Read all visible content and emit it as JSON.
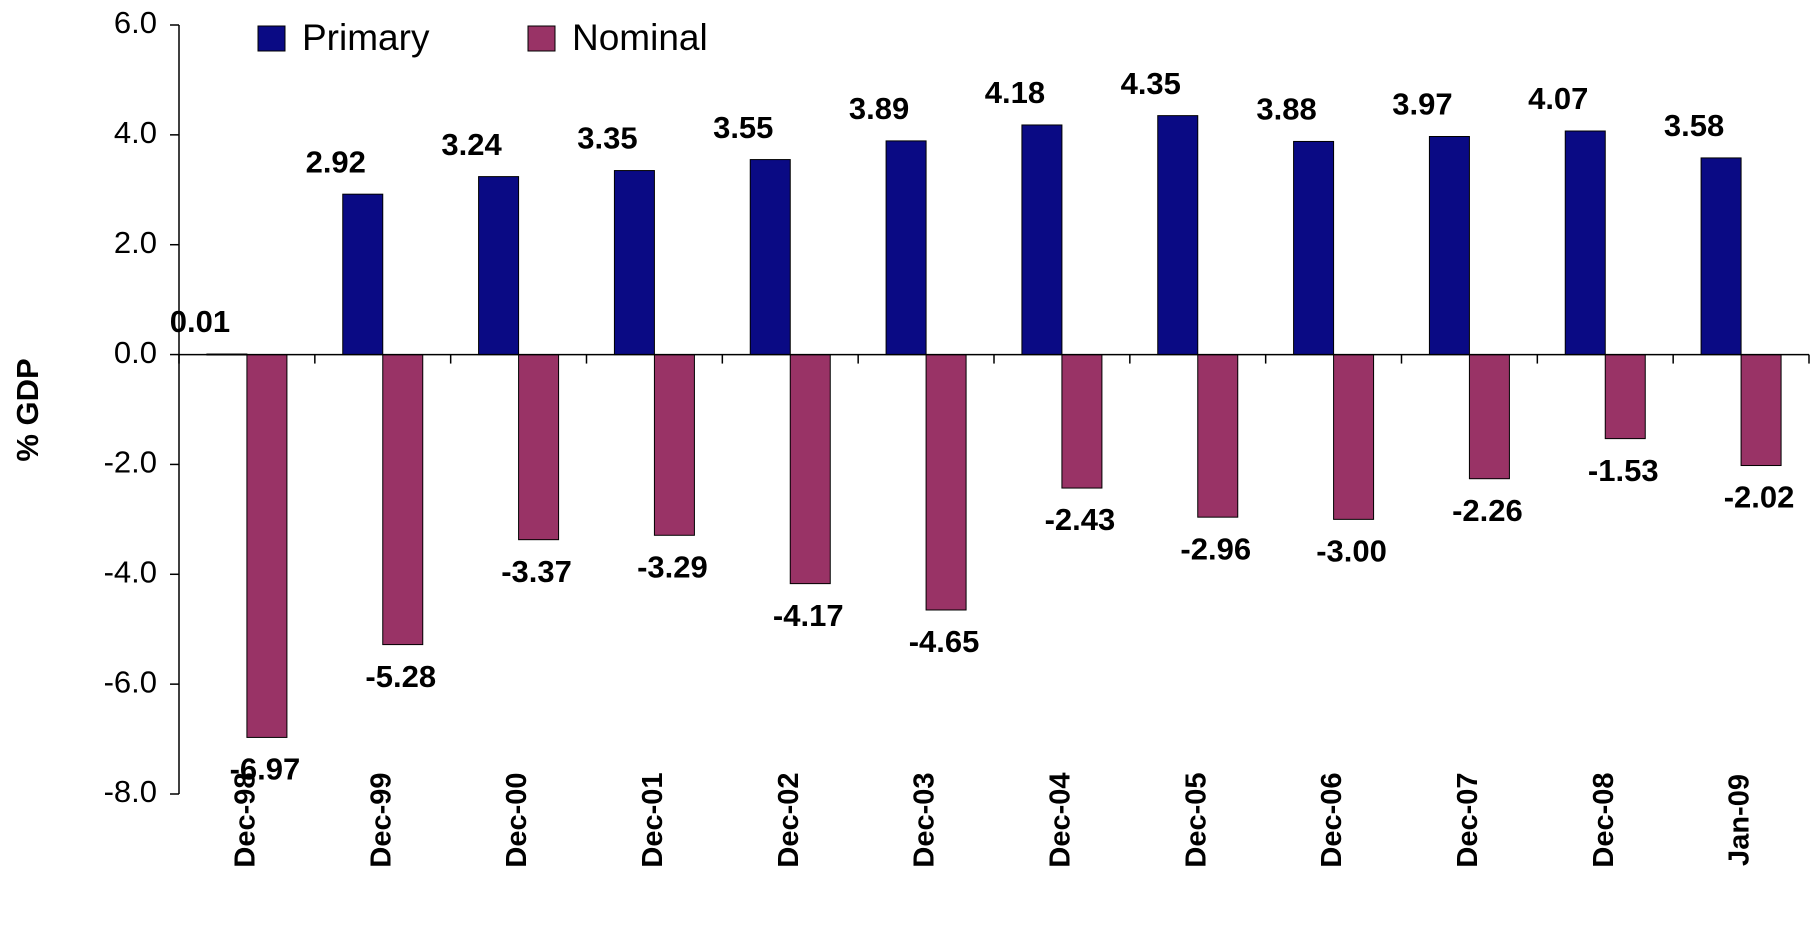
{
  "chart_data": {
    "type": "bar",
    "y_label": "% GDP",
    "categories": [
      "Dec-98",
      "Dec-99",
      "Dec-00",
      "Dec-01",
      "Dec-02",
      "Dec-03",
      "Dec-04",
      "Dec-05",
      "Dec-06",
      "Dec-07",
      "Dec-08",
      "Jan-09"
    ],
    "series": [
      {
        "name": "Primary",
        "color": "#0a0a84",
        "values": [
          0.01,
          2.92,
          3.24,
          3.35,
          3.55,
          3.89,
          4.18,
          4.35,
          3.88,
          3.97,
          4.07,
          3.58
        ],
        "value_labels": [
          "0.01",
          "2.92",
          "3.24",
          "3.35",
          "3.55",
          "3.89",
          "4.18",
          "4.35",
          "3.88",
          "3.97",
          "4.07",
          "3.58"
        ]
      },
      {
        "name": "Nominal",
        "color": "#993366",
        "values": [
          -6.97,
          -5.28,
          -3.37,
          -3.29,
          -4.17,
          -4.65,
          -2.43,
          -2.96,
          -3,
          -2.26,
          -1.53,
          -2.02
        ],
        "value_labels": [
          "-6.97",
          "-5.28",
          "-3.37",
          "-3.29",
          "-4.17",
          "-4.65",
          "-2.43",
          "-2.96",
          "-3.00",
          "-2.26",
          "-1.53",
          "-2.02"
        ]
      }
    ],
    "ylim": [
      -8,
      6
    ],
    "yticks": [
      {
        "value": -8,
        "label": "-8.0"
      },
      {
        "value": -6,
        "label": "-6.0"
      },
      {
        "value": -4,
        "label": "-4.0"
      },
      {
        "value": -2,
        "label": "-2.0"
      },
      {
        "value": 0,
        "label": "0.0"
      },
      {
        "value": 2,
        "label": "2.0"
      },
      {
        "value": 4,
        "label": "4.0"
      },
      {
        "value": 6,
        "label": "6.0"
      }
    ],
    "legend": "top-left"
  }
}
